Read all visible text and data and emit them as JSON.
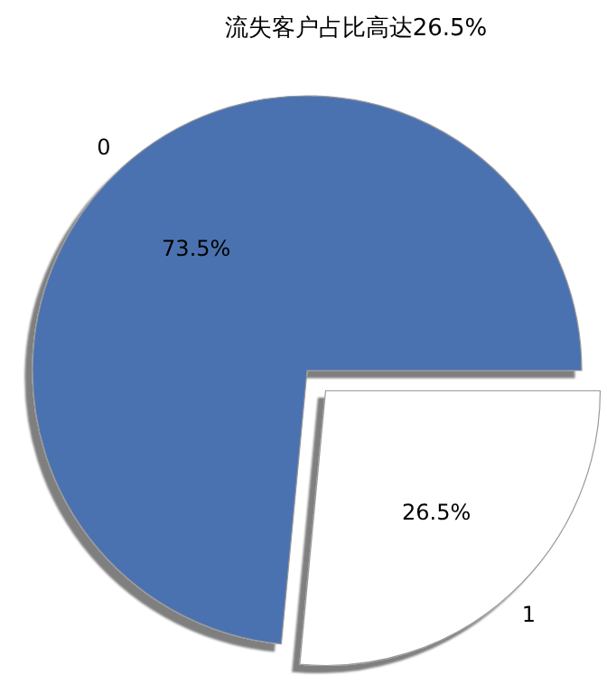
{
  "chart_data": {
    "type": "pie",
    "title": "流失客户占比高达26.5%",
    "categories": [
      "0",
      "1"
    ],
    "values": [
      73.5,
      26.5
    ],
    "colors": [
      "#4c72b0",
      "#ffffff"
    ],
    "value_labels": [
      "73.5%",
      "26.5%"
    ]
  }
}
